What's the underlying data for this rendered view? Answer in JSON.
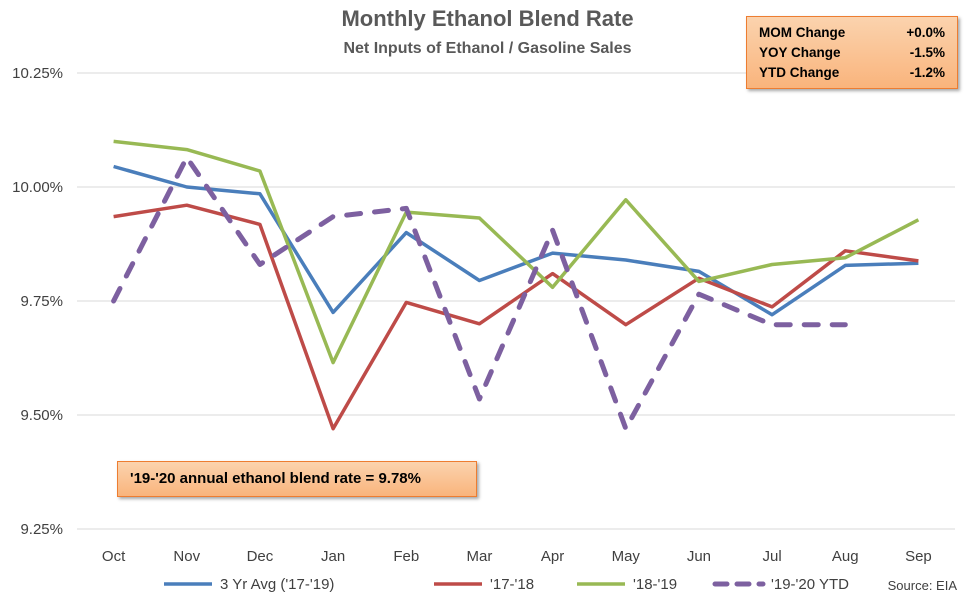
{
  "chart_data": {
    "type": "line",
    "title": "Monthly Ethanol Blend Rate",
    "subtitle": "Net Inputs of Ethanol / Gasoline Sales",
    "categories": [
      "Oct",
      "Nov",
      "Dec",
      "Jan",
      "Feb",
      "Mar",
      "Apr",
      "May",
      "Jun",
      "Jul",
      "Aug",
      "Sep"
    ],
    "ylim": [
      9.25,
      10.25
    ],
    "yticks": [
      9.25,
      9.5,
      9.75,
      10.0,
      10.25
    ],
    "ytick_labels": [
      "9.25%",
      "9.50%",
      "9.75%",
      "10.00%",
      "10.25%"
    ],
    "grid": true,
    "legend_position": "bottom",
    "series": [
      {
        "name": "3 Yr Avg ('17-'19)",
        "color": "#4a7ebb",
        "dashed": false,
        "values": [
          10.045,
          10.0,
          9.985,
          9.725,
          9.9,
          9.795,
          9.855,
          9.84,
          9.815,
          9.72,
          9.828,
          9.833
        ]
      },
      {
        "name": "'17-'18",
        "color": "#be4b48",
        "dashed": false,
        "values": [
          9.935,
          9.96,
          9.918,
          9.47,
          9.747,
          9.7,
          9.81,
          9.698,
          9.8,
          9.737,
          9.86,
          9.838
        ]
      },
      {
        "name": "'18-'19",
        "color": "#98b954",
        "dashed": false,
        "values": [
          10.1,
          10.082,
          10.035,
          9.615,
          9.945,
          9.932,
          9.78,
          9.972,
          9.793,
          9.83,
          9.845,
          9.928
        ]
      },
      {
        "name": "'19-'20 YTD",
        "color": "#7d60a0",
        "dashed": true,
        "values": [
          9.75,
          10.065,
          9.83,
          9.935,
          9.953,
          9.535,
          9.905,
          9.47,
          9.765,
          9.698,
          9.698,
          null
        ]
      }
    ],
    "annotation": "'19-'20 annual ethanol blend rate = 9.78%"
  },
  "stats": [
    {
      "label": "MOM Change",
      "value": "+0.0%"
    },
    {
      "label": "YOY Change",
      "value": "-1.5%"
    },
    {
      "label": "YTD Change",
      "value": "-1.2%"
    }
  ],
  "source": "Source: EIA"
}
